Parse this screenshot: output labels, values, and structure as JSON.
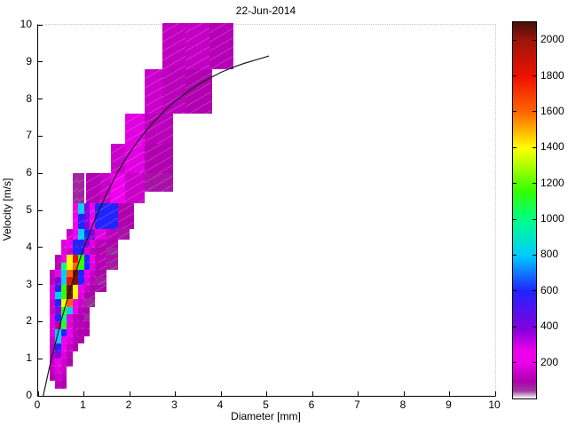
{
  "title": "22-Jun-2014",
  "axes": {
    "xlabel": "Diameter [mm]",
    "ylabel": "Velocity [m/s]",
    "xlim": [
      0,
      10
    ],
    "ylim": [
      0,
      10
    ],
    "xticks": [
      0,
      1,
      2,
      3,
      4,
      5,
      6,
      7,
      8,
      9,
      10
    ],
    "yticks": [
      0,
      1,
      2,
      3,
      4,
      5,
      6,
      7,
      8,
      9,
      10
    ]
  },
  "colorbar": {
    "min": 0,
    "max": 2100,
    "ticks": [
      200,
      400,
      600,
      800,
      1000,
      1200,
      1400,
      1600,
      1800,
      2000
    ],
    "stops": [
      [
        0.0,
        "#ffffff"
      ],
      [
        0.02,
        "#9c3a9c"
      ],
      [
        0.045,
        "#ad00ad"
      ],
      [
        0.07,
        "#c800c8"
      ],
      [
        0.095,
        "#ee00ee"
      ],
      [
        0.13,
        "#e800e8"
      ],
      [
        0.18,
        "#8800dd"
      ],
      [
        0.285,
        "#2222ff"
      ],
      [
        0.38,
        "#00ccff"
      ],
      [
        0.475,
        "#00ff88"
      ],
      [
        0.55,
        "#33ff00"
      ],
      [
        0.665,
        "#ffff00"
      ],
      [
        0.76,
        "#ff6600"
      ],
      [
        0.855,
        "#ee1100"
      ],
      [
        0.95,
        "#a01409"
      ],
      [
        1.0,
        "#481009"
      ]
    ]
  },
  "chart_data": {
    "type": "heatmap",
    "title": "22-Jun-2014",
    "xlabel": "Diameter [mm]",
    "ylabel": "Velocity [m/s]",
    "xlim": [
      0,
      10
    ],
    "ylim": [
      0,
      10
    ],
    "colorbar_range": [
      0,
      2100
    ],
    "cells_format": [
      "d_min_mm",
      "d_max_mm",
      "v_min_ms",
      "v_max_ms",
      "count"
    ],
    "cells": [
      [
        2.71,
        3.22,
        8.8,
        10.05,
        130
      ],
      [
        3.22,
        3.75,
        8.8,
        10.05,
        140
      ],
      [
        3.75,
        4.27,
        8.8,
        10.05,
        110
      ],
      [
        2.33,
        2.71,
        7.6,
        8.8,
        150
      ],
      [
        2.71,
        3.22,
        7.6,
        8.8,
        120
      ],
      [
        3.22,
        3.8,
        7.6,
        8.8,
        100
      ],
      [
        1.9,
        2.33,
        6.8,
        7.6,
        180
      ],
      [
        2.33,
        2.95,
        6.8,
        7.6,
        120
      ],
      [
        1.6,
        1.9,
        6.0,
        6.8,
        150
      ],
      [
        1.9,
        2.33,
        6.0,
        6.8,
        180
      ],
      [
        2.33,
        2.95,
        6.0,
        6.8,
        100
      ],
      [
        1.05,
        1.35,
        5.2,
        6.0,
        110
      ],
      [
        1.35,
        1.6,
        5.2,
        6.0,
        150
      ],
      [
        1.6,
        1.9,
        5.2,
        6.0,
        200
      ],
      [
        1.9,
        2.33,
        5.2,
        6.0,
        150
      ],
      [
        2.33,
        2.95,
        5.5,
        6.0,
        80
      ],
      [
        0.75,
        0.875,
        5.2,
        6.0,
        60
      ],
      [
        0.875,
        1.0,
        5.2,
        6.0,
        60
      ],
      [
        0.75,
        0.875,
        4.5,
        5.2,
        200
      ],
      [
        0.875,
        1.0,
        4.9,
        5.2,
        800
      ],
      [
        0.875,
        1.0,
        4.5,
        4.9,
        600
      ],
      [
        1.0,
        1.125,
        4.5,
        5.2,
        380
      ],
      [
        1.125,
        1.25,
        4.5,
        5.2,
        200
      ],
      [
        1.25,
        1.75,
        4.5,
        5.2,
        600
      ],
      [
        1.75,
        2.1,
        4.5,
        5.2,
        100
      ],
      [
        0.625,
        0.75,
        4.2,
        4.5,
        150
      ],
      [
        0.75,
        0.875,
        4.2,
        4.5,
        200
      ],
      [
        0.875,
        1.0,
        4.2,
        4.5,
        800
      ],
      [
        1.0,
        1.125,
        4.2,
        4.5,
        600
      ],
      [
        1.125,
        1.25,
        4.2,
        4.5,
        380
      ],
      [
        1.25,
        1.5,
        4.2,
        4.5,
        180
      ],
      [
        1.5,
        1.75,
        4.2,
        4.5,
        120
      ],
      [
        1.75,
        2.0,
        4.2,
        4.5,
        80
      ],
      [
        0.5,
        0.625,
        4.0,
        4.2,
        180
      ],
      [
        0.625,
        0.75,
        4.0,
        4.2,
        200
      ],
      [
        0.75,
        0.875,
        4.0,
        4.2,
        600
      ],
      [
        0.875,
        1.0,
        4.0,
        4.2,
        600
      ],
      [
        1.0,
        1.125,
        4.0,
        4.2,
        380
      ],
      [
        1.125,
        1.25,
        4.0,
        4.2,
        180
      ],
      [
        1.25,
        1.5,
        4.0,
        4.2,
        120
      ],
      [
        1.5,
        1.75,
        4.0,
        4.2,
        100
      ],
      [
        0.5,
        0.625,
        3.8,
        4.0,
        180
      ],
      [
        0.625,
        0.75,
        3.8,
        4.0,
        150
      ],
      [
        0.75,
        0.875,
        3.8,
        4.0,
        600
      ],
      [
        0.875,
        1.0,
        3.8,
        4.0,
        600
      ],
      [
        1.0,
        1.125,
        3.8,
        4.0,
        180
      ],
      [
        1.125,
        1.25,
        3.8,
        4.0,
        120
      ],
      [
        1.25,
        1.5,
        3.8,
        4.0,
        100
      ],
      [
        1.5,
        1.75,
        3.8,
        4.0,
        60
      ],
      [
        0.375,
        0.5,
        3.6,
        3.8,
        120
      ],
      [
        0.5,
        0.625,
        3.6,
        3.8,
        200
      ],
      [
        0.625,
        0.75,
        3.6,
        3.8,
        1400
      ],
      [
        0.75,
        0.875,
        3.6,
        3.8,
        1800
      ],
      [
        0.875,
        1.0,
        3.6,
        3.8,
        1150
      ],
      [
        1.0,
        1.125,
        3.6,
        3.8,
        600
      ],
      [
        1.125,
        1.25,
        3.6,
        3.8,
        200
      ],
      [
        1.25,
        1.5,
        3.6,
        3.8,
        120
      ],
      [
        1.5,
        1.75,
        3.6,
        3.8,
        80
      ],
      [
        0.375,
        0.5,
        3.4,
        3.6,
        120
      ],
      [
        0.5,
        0.625,
        3.4,
        3.6,
        1000
      ],
      [
        0.625,
        0.75,
        3.4,
        3.6,
        1400
      ],
      [
        0.75,
        0.875,
        3.4,
        3.6,
        1600
      ],
      [
        0.875,
        1.0,
        3.4,
        3.6,
        1150
      ],
      [
        1.0,
        1.125,
        3.4,
        3.6,
        600
      ],
      [
        1.125,
        1.25,
        3.4,
        3.6,
        180
      ],
      [
        1.25,
        1.5,
        3.4,
        3.6,
        110
      ],
      [
        1.5,
        1.75,
        3.4,
        3.6,
        70
      ],
      [
        0.25,
        0.375,
        3.2,
        3.4,
        120
      ],
      [
        0.375,
        0.5,
        3.2,
        3.4,
        200
      ],
      [
        0.5,
        0.625,
        3.2,
        3.4,
        800
      ],
      [
        0.625,
        0.75,
        3.2,
        3.4,
        1600
      ],
      [
        0.75,
        0.875,
        3.2,
        3.4,
        2050
      ],
      [
        0.875,
        1.0,
        3.2,
        3.4,
        600
      ],
      [
        1.0,
        1.125,
        3.2,
        3.4,
        200
      ],
      [
        1.125,
        1.25,
        3.2,
        3.4,
        150
      ],
      [
        1.25,
        1.5,
        3.2,
        3.4,
        90
      ],
      [
        0.25,
        0.375,
        3.0,
        3.2,
        120
      ],
      [
        0.375,
        0.5,
        3.0,
        3.2,
        380
      ],
      [
        0.5,
        0.625,
        3.0,
        3.2,
        800
      ],
      [
        0.625,
        0.75,
        3.0,
        3.2,
        1800
      ],
      [
        0.75,
        0.875,
        3.0,
        3.2,
        2050
      ],
      [
        0.875,
        1.0,
        3.0,
        3.2,
        600
      ],
      [
        1.0,
        1.125,
        3.0,
        3.2,
        180
      ],
      [
        1.125,
        1.25,
        3.0,
        3.2,
        120
      ],
      [
        1.25,
        1.5,
        3.0,
        3.2,
        70
      ],
      [
        0.25,
        0.375,
        2.8,
        3.0,
        180
      ],
      [
        0.375,
        0.5,
        2.8,
        3.0,
        600
      ],
      [
        0.5,
        0.625,
        2.8,
        3.0,
        1150
      ],
      [
        0.625,
        0.75,
        2.8,
        3.0,
        2050
      ],
      [
        0.75,
        0.875,
        2.8,
        3.0,
        1400
      ],
      [
        0.875,
        1.0,
        2.8,
        3.0,
        200
      ],
      [
        1.0,
        1.125,
        2.8,
        3.0,
        150
      ],
      [
        1.125,
        1.5,
        2.8,
        3.0,
        90
      ],
      [
        0.25,
        0.375,
        2.6,
        2.8,
        180
      ],
      [
        0.375,
        0.5,
        2.6,
        2.8,
        800
      ],
      [
        0.5,
        0.625,
        2.6,
        2.8,
        1150
      ],
      [
        0.625,
        0.75,
        2.6,
        2.8,
        2050
      ],
      [
        0.75,
        0.875,
        2.6,
        2.8,
        1400
      ],
      [
        0.875,
        1.0,
        2.6,
        2.8,
        180
      ],
      [
        1.0,
        1.25,
        2.6,
        2.8,
        90
      ],
      [
        0.25,
        0.375,
        2.4,
        2.6,
        150
      ],
      [
        0.375,
        0.5,
        2.4,
        2.6,
        600
      ],
      [
        0.5,
        0.625,
        2.4,
        2.6,
        1400
      ],
      [
        0.625,
        0.75,
        2.4,
        2.6,
        1600
      ],
      [
        0.75,
        0.875,
        2.4,
        2.6,
        200
      ],
      [
        0.875,
        1.0,
        2.4,
        2.6,
        150
      ],
      [
        1.0,
        1.25,
        2.4,
        2.6,
        60
      ],
      [
        0.25,
        0.375,
        2.2,
        2.4,
        150
      ],
      [
        0.375,
        0.5,
        2.2,
        2.4,
        380
      ],
      [
        0.5,
        0.625,
        2.2,
        2.4,
        1150
      ],
      [
        0.625,
        0.75,
        2.2,
        2.4,
        800
      ],
      [
        0.75,
        0.875,
        2.2,
        2.4,
        200
      ],
      [
        0.875,
        1.0,
        2.2,
        2.4,
        120
      ],
      [
        1.0,
        1.125,
        2.2,
        2.4,
        90
      ],
      [
        0.25,
        0.375,
        2.0,
        2.2,
        180
      ],
      [
        0.375,
        0.5,
        2.0,
        2.2,
        600
      ],
      [
        0.5,
        0.625,
        2.0,
        2.2,
        1000
      ],
      [
        0.625,
        0.75,
        2.0,
        2.2,
        180
      ],
      [
        0.75,
        0.875,
        2.0,
        2.2,
        120
      ],
      [
        0.875,
        1.0,
        2.0,
        2.2,
        100
      ],
      [
        1.0,
        1.125,
        2.0,
        2.2,
        60
      ],
      [
        0.25,
        0.375,
        1.8,
        2.0,
        180
      ],
      [
        0.375,
        0.5,
        1.8,
        2.0,
        120
      ],
      [
        0.5,
        0.625,
        1.8,
        2.0,
        1100
      ],
      [
        0.625,
        0.75,
        1.8,
        2.0,
        180
      ],
      [
        0.75,
        0.875,
        1.8,
        2.0,
        120
      ],
      [
        0.875,
        1.0,
        1.8,
        2.0,
        120
      ],
      [
        1.0,
        1.125,
        1.8,
        2.0,
        100
      ],
      [
        0.25,
        0.375,
        1.6,
        1.8,
        180
      ],
      [
        0.375,
        0.5,
        1.6,
        1.8,
        800
      ],
      [
        0.5,
        0.625,
        1.6,
        1.8,
        600
      ],
      [
        0.625,
        0.75,
        1.6,
        1.8,
        200
      ],
      [
        0.75,
        0.875,
        1.6,
        1.8,
        120
      ],
      [
        0.875,
        1.0,
        1.6,
        1.8,
        100
      ],
      [
        1.0,
        1.125,
        1.6,
        1.8,
        100
      ],
      [
        0.25,
        0.375,
        1.4,
        1.6,
        150
      ],
      [
        0.375,
        0.5,
        1.4,
        1.6,
        800
      ],
      [
        0.5,
        0.625,
        1.4,
        1.6,
        200
      ],
      [
        0.625,
        0.75,
        1.4,
        1.6,
        180
      ],
      [
        0.75,
        0.875,
        1.4,
        1.6,
        120
      ],
      [
        0.875,
        1.0,
        1.4,
        1.6,
        100
      ],
      [
        0.25,
        0.375,
        1.2,
        1.4,
        120
      ],
      [
        0.375,
        0.5,
        1.2,
        1.4,
        600
      ],
      [
        0.5,
        0.625,
        1.2,
        1.4,
        200
      ],
      [
        0.625,
        0.75,
        1.2,
        1.4,
        150
      ],
      [
        0.75,
        0.875,
        1.2,
        1.4,
        100
      ],
      [
        0.25,
        0.375,
        1.0,
        1.2,
        120
      ],
      [
        0.375,
        0.5,
        1.0,
        1.2,
        380
      ],
      [
        0.5,
        0.625,
        1.0,
        1.2,
        180
      ],
      [
        0.625,
        0.75,
        1.0,
        1.2,
        120
      ],
      [
        0.25,
        0.375,
        0.8,
        1.0,
        150
      ],
      [
        0.375,
        0.5,
        0.8,
        1.0,
        200
      ],
      [
        0.5,
        0.625,
        0.8,
        1.0,
        150
      ],
      [
        0.625,
        0.75,
        0.8,
        1.0,
        100
      ],
      [
        0.25,
        0.375,
        0.6,
        0.8,
        120
      ],
      [
        0.375,
        0.5,
        0.6,
        0.8,
        180
      ],
      [
        0.5,
        0.625,
        0.6,
        0.8,
        150
      ],
      [
        0.25,
        0.375,
        0.4,
        0.6,
        100
      ],
      [
        0.375,
        0.5,
        0.4,
        0.6,
        150
      ],
      [
        0.5,
        0.625,
        0.4,
        0.6,
        120
      ],
      [
        0.375,
        0.5,
        0.2,
        0.4,
        120
      ],
      [
        0.5,
        0.625,
        0.2,
        0.4,
        100
      ]
    ],
    "fit_curve": {
      "points": [
        [
          0.11,
          0
        ],
        [
          0.25,
          0.79
        ],
        [
          0.5,
          2.02
        ],
        [
          0.75,
          3.08
        ],
        [
          1.0,
          4.0
        ],
        [
          1.25,
          4.78
        ],
        [
          1.5,
          5.46
        ],
        [
          1.75,
          6.05
        ],
        [
          2.0,
          6.55
        ],
        [
          2.25,
          6.98
        ],
        [
          2.5,
          7.35
        ],
        [
          2.75,
          7.67
        ],
        [
          3.0,
          7.95
        ],
        [
          3.25,
          8.18
        ],
        [
          3.5,
          8.39
        ],
        [
          3.75,
          8.56
        ],
        [
          4.0,
          8.72
        ],
        [
          4.25,
          8.85
        ],
        [
          4.5,
          8.96
        ],
        [
          4.75,
          9.05
        ],
        [
          5.05,
          9.16
        ]
      ]
    }
  }
}
